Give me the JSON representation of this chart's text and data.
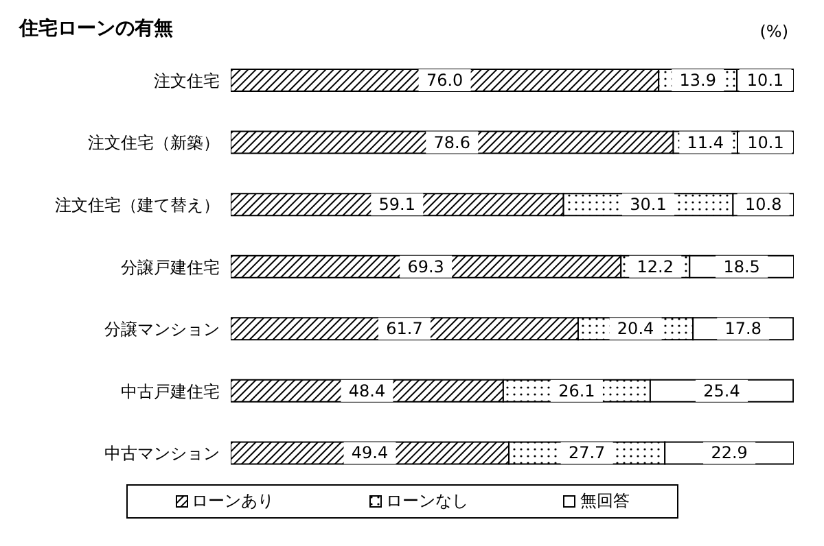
{
  "chart_data": {
    "type": "bar",
    "orientation": "horizontal",
    "stacked": true,
    "title": "住宅ローンの有無",
    "annotations": [
      "(%)"
    ],
    "categories": [
      "注文住宅",
      "注文住宅（新築）",
      "注文住宅（建て替え）",
      "分譲戸建住宅",
      "分譲マンション",
      "中古戸建住宅",
      "中古マンション"
    ],
    "series": [
      {
        "name": "ローンあり",
        "color": "#000000",
        "values": [
          76.0,
          78.6,
          59.1,
          69.3,
          61.7,
          48.4,
          49.4
        ],
        "value_labels": [
          "76.0",
          "78.6",
          "59.1",
          "69.3",
          "61.7",
          "48.4",
          "49.4"
        ]
      },
      {
        "name": "ローンなし",
        "color": "#000000",
        "values": [
          13.9,
          11.4,
          30.1,
          12.2,
          20.4,
          26.1,
          27.7
        ],
        "value_labels": [
          "13.9",
          "11.4",
          "30.1",
          "12.2",
          "20.4",
          "26.1",
          "27.7"
        ]
      },
      {
        "name": "無回答",
        "color": "#ffffff",
        "values": [
          10.1,
          10.1,
          10.8,
          18.5,
          17.8,
          25.4,
          22.9
        ],
        "value_labels": [
          "10.1",
          "10.1",
          "10.8",
          "18.5",
          "17.8",
          "25.4",
          "22.9"
        ]
      }
    ],
    "xlim": [
      0,
      100
    ],
    "tick_labels": "y",
    "legend": "bottom"
  }
}
